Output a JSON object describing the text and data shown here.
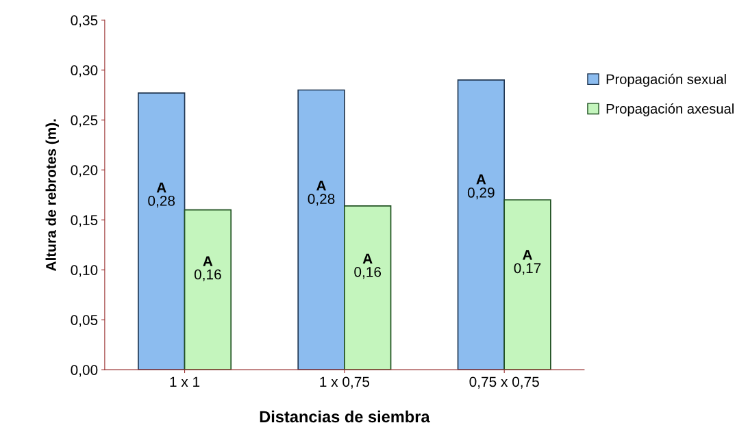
{
  "chart_data": {
    "type": "bar",
    "xlabel": "Distancias de siembra",
    "ylabel": "Altura de rebrotes (m).",
    "categories": [
      "1 x 1",
      "1 x 0,75",
      "0,75 x 0,75"
    ],
    "series": [
      {
        "name": "Propagación sexual",
        "color": "#8cbcef",
        "values": [
          0.277,
          0.28,
          0.29
        ],
        "value_labels": [
          "A\n0,28",
          "A\n0,28",
          "A\n0,29"
        ]
      },
      {
        "name": "Propagación axesual",
        "color": "#c4f5bd",
        "values": [
          0.16,
          0.164,
          0.17
        ],
        "value_labels": [
          "A\n0,16",
          "A\n0,16",
          "A\n0,17"
        ]
      }
    ],
    "ylim": [
      0,
      0.35
    ],
    "yticks": [
      {
        "value": 0,
        "label": "0,00"
      },
      {
        "value": 0.05,
        "label": "0,05"
      },
      {
        "value": 0.1,
        "label": "0,10"
      },
      {
        "value": 0.15,
        "label": "0,15"
      },
      {
        "value": 0.2,
        "label": "0,20"
      },
      {
        "value": 0.25,
        "label": "0,25"
      },
      {
        "value": 0.3,
        "label": "0,30"
      },
      {
        "value": 0.35,
        "label": "0,35"
      }
    ],
    "grid": false,
    "legend": "top right"
  }
}
